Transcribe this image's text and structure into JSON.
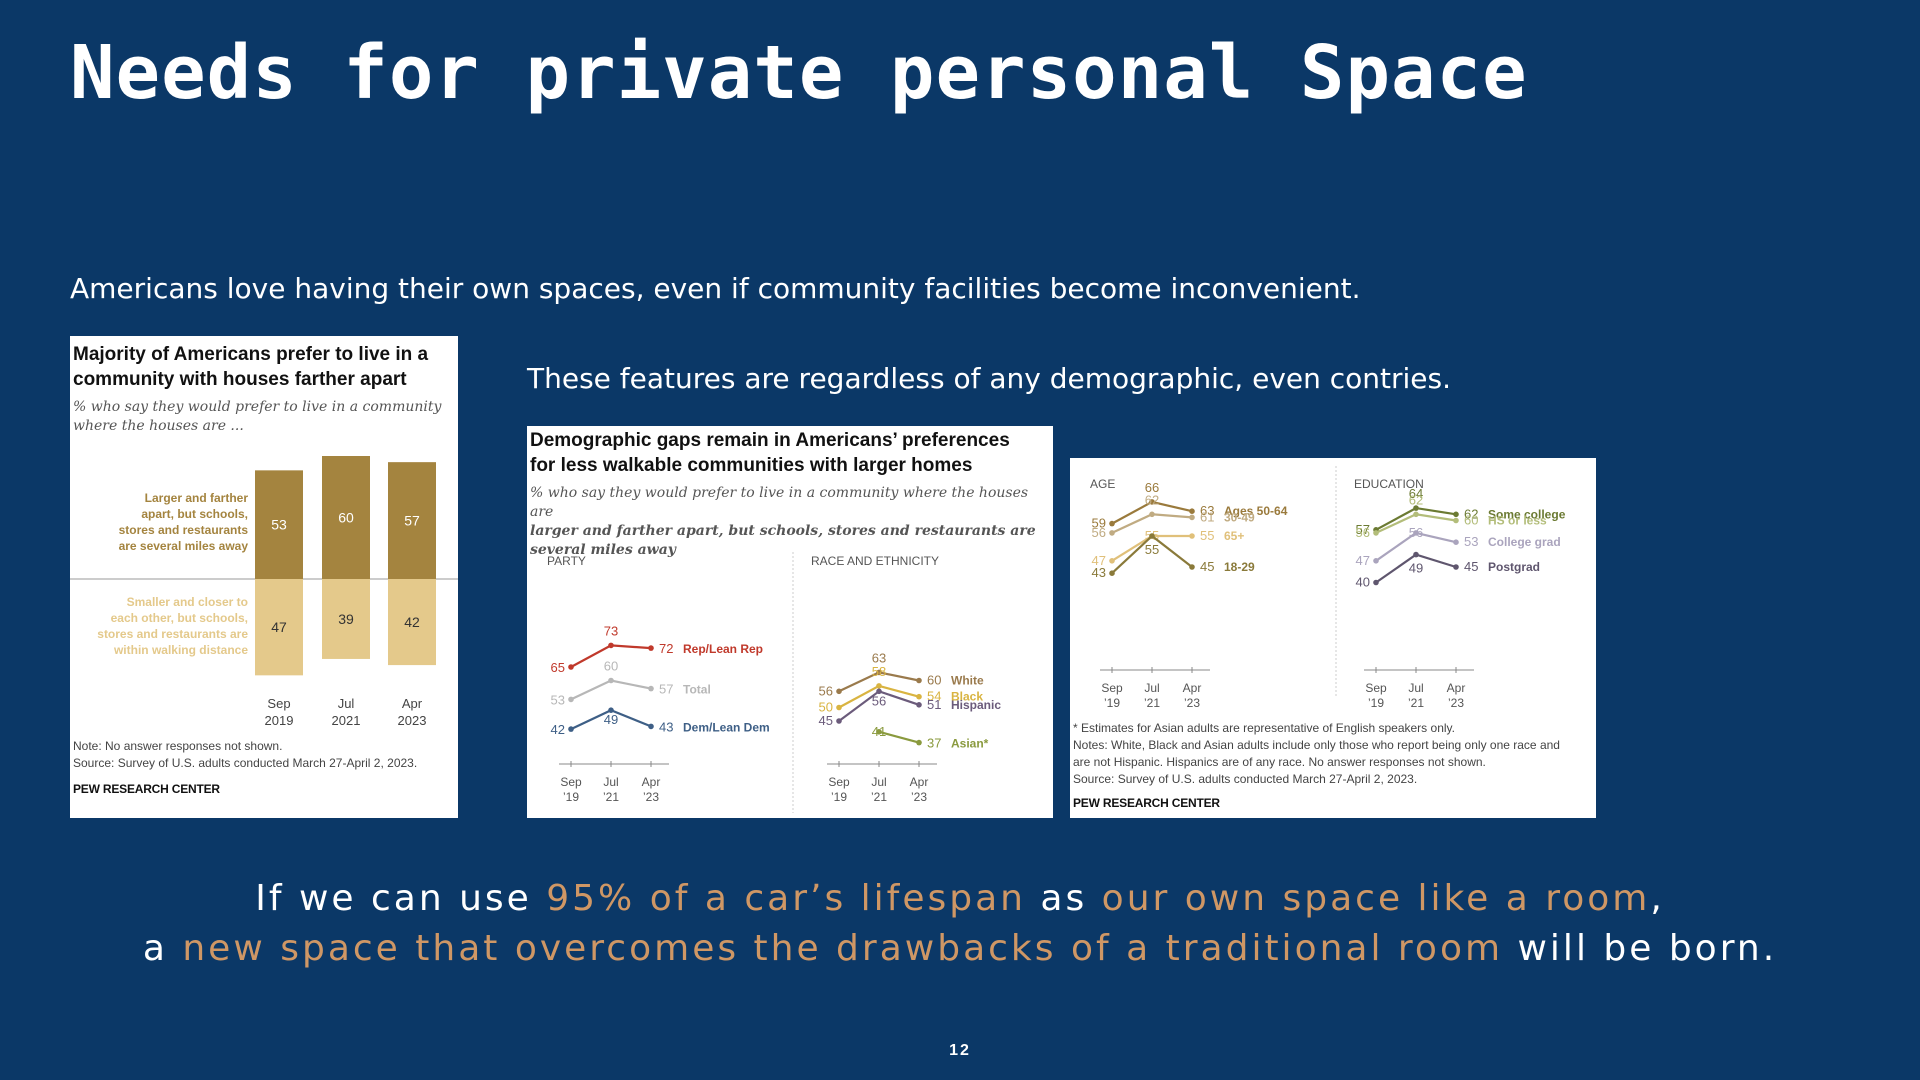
{
  "slide": {
    "title": "Needs for private personal Space",
    "subtitle1": "Americans love having their own spaces, even if community facilities become inconvenient.",
    "subtitle2": "These features are regardless of any demographic, even contries.",
    "conclusion": {
      "line1": [
        {
          "text": "If we can use ",
          "hl": false
        },
        {
          "text": "95% of a car’s lifespan",
          "hl": true
        },
        {
          "text": " as ",
          "hl": false
        },
        {
          "text": "our own space like a room",
          "hl": true
        },
        {
          "text": ",",
          "hl": false
        }
      ],
      "line2": [
        {
          "text": "a ",
          "hl": false
        },
        {
          "text": "new space that overcomes the drawbacks of a traditional room",
          "hl": true
        },
        {
          "text": " will be born.",
          "hl": false
        }
      ]
    },
    "page_number": "12",
    "colors": {
      "background": "#0b3867",
      "highlight": "#cf9765"
    }
  },
  "card1": {
    "title_line1": "Majority of Americans prefer to live in a",
    "title_line2": "community with houses farther apart",
    "desc_line1": "% who say they would prefer to live in a community",
    "desc_line2": "where the houses are ...",
    "note": "Note: No answer responses not shown.",
    "source": "Source: Survey of U.S. adults conducted March 27-April 2, 2023.",
    "org": "PEW RESEARCH CENTER"
  },
  "card2": {
    "title_line1": "Demographic gaps remain in Americans’ preferences",
    "title_line2": "for less walkable communities with larger homes",
    "desc_line1": "% who say they would prefer to live in a community where the houses are",
    "desc_line2": "larger and farther apart, but schools, stores and restaurants are",
    "desc_line3": "several miles away"
  },
  "card3": {
    "footnote": "* Estimates for Asian adults are representative of English speakers only.",
    "notes_line1": "Notes: White, Black and Asian adults include only those who report being only one race and",
    "notes_line2": "are not Hispanic. Hispanics are of any race. No answer responses not shown.",
    "source": "Source: Survey of U.S. adults conducted March 27-April 2, 2023.",
    "org": "PEW RESEARCH CENTER"
  },
  "chart_data": [
    {
      "type": "bar",
      "stacked": "diverging",
      "categories": [
        "Sep\n2019",
        "Jul\n2021",
        "Apr\n2023"
      ],
      "series": [
        {
          "name": "Larger and farther apart, but schools, stores and restaurants are several miles away",
          "values": [
            53,
            60,
            57
          ],
          "color": "#a4843f"
        },
        {
          "name": "Smaller and closer to each other, but schools, stores and restaurants are within walking distance",
          "values": [
            47,
            39,
            42
          ],
          "color": "#e4c98b"
        }
      ]
    },
    {
      "type": "line",
      "title": "PARTY",
      "categories": [
        "Sep\n’19",
        "Jul\n’21",
        "Apr\n’23"
      ],
      "ylim": [
        35,
        80
      ],
      "series": [
        {
          "name": "Rep/Lean Rep",
          "values": [
            65,
            73,
            72
          ],
          "color": "#c0392b"
        },
        {
          "name": "Total",
          "values": [
            53,
            60,
            57
          ],
          "color": "#b7b7b7"
        },
        {
          "name": "Dem/Lean Dem",
          "values": [
            42,
            49,
            43
          ],
          "color": "#3e5f86"
        }
      ]
    },
    {
      "type": "line",
      "title": "RACE AND ETHNICITY",
      "categories": [
        "Sep\n’19",
        "Jul\n’21",
        "Apr\n’23"
      ],
      "ylim": [
        35,
        80
      ],
      "series": [
        {
          "name": "White",
          "values": [
            56,
            63,
            60
          ],
          "color": "#9a7a4c"
        },
        {
          "name": "Black",
          "values": [
            50,
            58,
            54
          ],
          "color": "#d9b441"
        },
        {
          "name": "Hispanic",
          "values": [
            45,
            56,
            51
          ],
          "color": "#6b5b7b"
        },
        {
          "name": "Asian*",
          "values": [
            null,
            41,
            37
          ],
          "color": "#8a9a3e"
        }
      ]
    },
    {
      "type": "line",
      "title": "AGE",
      "categories": [
        "Sep\n’19",
        "Jul\n’21",
        "Apr\n’23"
      ],
      "ylim": [
        35,
        75
      ],
      "series": [
        {
          "name": "Ages 50-64",
          "values": [
            59,
            66,
            63
          ],
          "color": "#9a7a3c"
        },
        {
          "name": "30-49",
          "values": [
            56,
            62,
            61
          ],
          "color": "#c0ab82"
        },
        {
          "name": "65+",
          "values": [
            47,
            55,
            55
          ],
          "color": "#e0c07a"
        },
        {
          "name": "18-29",
          "values": [
            43,
            55,
            45
          ],
          "color": "#8a7a3a"
        }
      ]
    },
    {
      "type": "line",
      "title": "EDUCATION",
      "categories": [
        "Sep\n’19",
        "Jul\n’21",
        "Apr\n’23"
      ],
      "ylim": [
        35,
        75
      ],
      "series": [
        {
          "name": "Some college",
          "values": [
            57,
            64,
            62
          ],
          "color": "#6b7a32"
        },
        {
          "name": "HS or less",
          "values": [
            56,
            62,
            60
          ],
          "color": "#b3bd7a"
        },
        {
          "name": "College grad",
          "values": [
            47,
            56,
            53
          ],
          "color": "#aaa4bd"
        },
        {
          "name": "Postgrad",
          "values": [
            40,
            49,
            45
          ],
          "color": "#5f566e"
        }
      ]
    }
  ]
}
